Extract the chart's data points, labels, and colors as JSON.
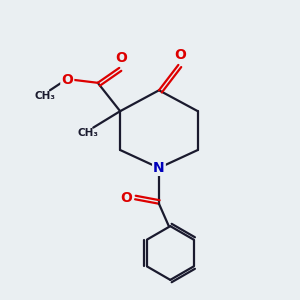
{
  "background_color": "#eaeff2",
  "bond_color": "#1a1a2e",
  "oxygen_color": "#dd0000",
  "nitrogen_color": "#0000bb",
  "line_width": 1.6,
  "figsize": [
    3.0,
    3.0
  ],
  "dpi": 100,
  "xlim": [
    0,
    10
  ],
  "ylim": [
    0,
    10
  ]
}
